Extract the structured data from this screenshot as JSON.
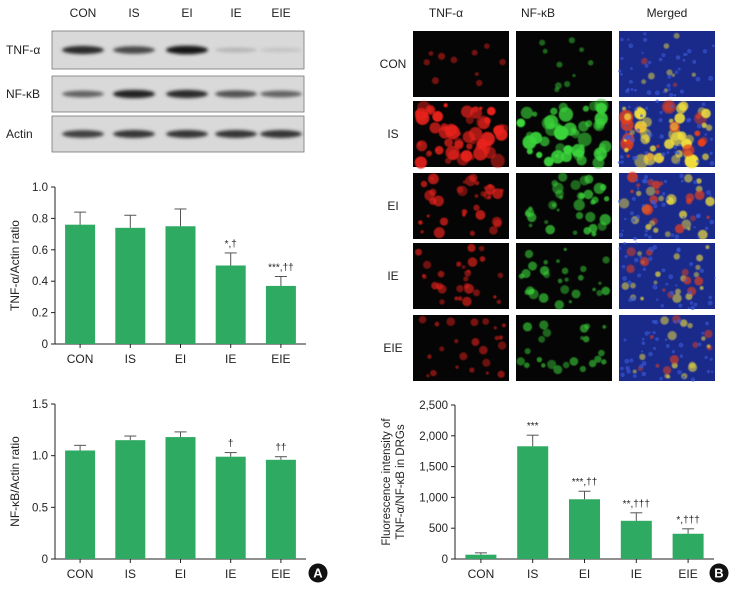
{
  "western_blot": {
    "groups": [
      "CON",
      "IS",
      "EI",
      "IE",
      "EIE"
    ],
    "row_labels": [
      "TNF-α",
      "NF-κB",
      "Actin"
    ],
    "band_intensity": [
      [
        0.85,
        0.7,
        0.95,
        0.12,
        0.05
      ],
      [
        0.55,
        0.9,
        0.85,
        0.65,
        0.55
      ],
      [
        0.75,
        0.8,
        0.8,
        0.8,
        0.8
      ]
    ]
  },
  "if_panel": {
    "column_labels": [
      "TNF-α",
      "NF-κB",
      "Merged"
    ],
    "row_labels": [
      "CON",
      "IS",
      "EI",
      "IE",
      "EIE"
    ],
    "signal_level": [
      0.08,
      0.95,
      0.55,
      0.4,
      0.3
    ]
  },
  "panel_labels": [
    "A",
    "B"
  ],
  "colors": {
    "bar": "#2eaa62",
    "tnf": "#e8201b",
    "nfkb": "#3ad43a",
    "merge_bg": "#1a2a8a",
    "merge_sig": "#f5e23a"
  },
  "chart_data": [
    {
      "type": "bar",
      "categories": [
        "CON",
        "IS",
        "EI",
        "IE",
        "EIE"
      ],
      "values": [
        0.76,
        0.74,
        0.75,
        0.5,
        0.37
      ],
      "errors": [
        0.08,
        0.08,
        0.11,
        0.08,
        0.06
      ],
      "annotations": [
        "",
        "",
        "",
        "*,†",
        "***,††"
      ],
      "ylabel": "TNF-α/Actin ratio",
      "ylim": [
        0,
        1.0
      ],
      "yticks": [
        "0",
        "0.2",
        "0.4",
        "0.6",
        "0.8",
        "1.0"
      ]
    },
    {
      "type": "bar",
      "categories": [
        "CON",
        "IS",
        "EI",
        "IE",
        "EIE"
      ],
      "values": [
        1.05,
        1.15,
        1.18,
        0.99,
        0.96
      ],
      "errors": [
        0.05,
        0.04,
        0.05,
        0.04,
        0.03
      ],
      "annotations": [
        "",
        "",
        "",
        "†",
        "††"
      ],
      "ylabel": "NF-κB/Actin ratio",
      "ylim": [
        0,
        1.5
      ],
      "yticks": [
        "0",
        "0.5",
        "1.0",
        "1.5"
      ]
    },
    {
      "type": "bar",
      "categories": [
        "CON",
        "IS",
        "EI",
        "IE",
        "EIE"
      ],
      "values": [
        70,
        1830,
        970,
        620,
        410
      ],
      "errors": [
        30,
        180,
        130,
        130,
        80
      ],
      "annotations": [
        "",
        "***",
        "***,††",
        "**,†††",
        "*,†††"
      ],
      "ylabel_lines": [
        "Fluorescence intensity of",
        "TNF-α/NF-κB in DRGs"
      ],
      "ylim": [
        0,
        2500
      ],
      "yticks": [
        "0",
        "500",
        "1,000",
        "1,500",
        "2,000",
        "2,500"
      ]
    }
  ]
}
